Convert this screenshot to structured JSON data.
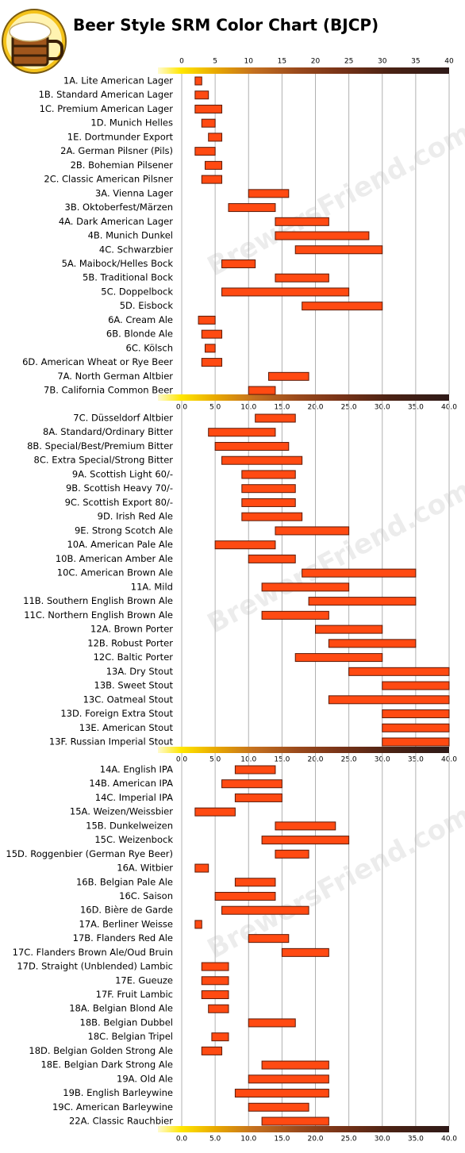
{
  "watermark": "BrewersFriend.com",
  "chart_data": [
    {
      "type": "range-bar",
      "title": "Beer Style SRM Color Chart (BJCP)",
      "color": "#ff4a12",
      "xlim": [
        0,
        40
      ],
      "x2ticks": [
        0,
        5,
        10,
        15,
        20,
        25,
        30,
        35,
        40
      ],
      "xticks": [
        {
          "value": 0,
          "label": "0.0"
        },
        {
          "value": 5,
          "label": "5.0"
        },
        {
          "value": 10,
          "label": "10.0"
        },
        {
          "value": 15,
          "label": "15.0"
        },
        {
          "value": 20,
          "label": "20.0"
        },
        {
          "value": 25,
          "label": "25.0"
        },
        {
          "value": 30,
          "label": "30.0"
        },
        {
          "value": 35,
          "label": "35.0"
        },
        {
          "value": 40,
          "label": "40.0"
        }
      ],
      "categories": [
        "1A. Lite American Lager",
        "1B. Standard American Lager",
        "1C. Premium American Lager",
        "1D. Munich Helles",
        "1E. Dortmunder Export",
        "2A. German Pilsner (Pils)",
        "2B. Bohemian Pilsener",
        "2C. Classic American Pilsner",
        "3A. Vienna Lager",
        "3B. Oktoberfest/Märzen",
        "4A. Dark American Lager",
        "4B. Munich Dunkel",
        "4C. Schwarzbier",
        "5A. Maibock/Helles Bock",
        "5B. Traditional Bock",
        "5C. Doppelbock",
        "5D. Eisbock",
        "6A. Cream Ale",
        "6B. Blonde Ale",
        "6C. Kölsch",
        "6D. American Wheat or Rye Beer",
        "7A. North German Altbier",
        "7B. California Common Beer"
      ],
      "low": [
        2,
        2,
        2,
        3,
        4,
        2,
        3.5,
        3,
        10,
        7,
        14,
        14,
        17,
        6,
        14,
        6,
        18,
        2.5,
        3,
        3.5,
        3,
        13,
        10
      ],
      "high": [
        3,
        4,
        6,
        5,
        6,
        5,
        6,
        6,
        16,
        14,
        22,
        28,
        30,
        11,
        22,
        25,
        30,
        5,
        6,
        5,
        6,
        19,
        14
      ]
    },
    {
      "type": "range-bar",
      "color": "#ff4a12",
      "xlim": [
        0,
        40
      ],
      "xticks": [
        {
          "value": 0,
          "label": "0.0"
        },
        {
          "value": 5,
          "label": "5.0"
        },
        {
          "value": 10,
          "label": "10.0"
        },
        {
          "value": 15,
          "label": "15.0"
        },
        {
          "value": 20,
          "label": "20.0"
        },
        {
          "value": 25,
          "label": "25.0"
        },
        {
          "value": 30,
          "label": "30.0"
        },
        {
          "value": 35,
          "label": "35.0"
        },
        {
          "value": 40,
          "label": "40.0"
        }
      ],
      "categories": [
        "7C. Düsseldorf Altbier",
        "8A. Standard/Ordinary Bitter",
        "8B. Special/Best/Premium Bitter",
        "8C. Extra Special/Strong Bitter",
        "9A. Scottish Light 60/-",
        "9B. Scottish Heavy 70/-",
        "9C. Scottish Export 80/-",
        "9D. Irish Red Ale",
        "9E. Strong Scotch Ale",
        "10A. American Pale Ale",
        "10B. American Amber Ale",
        "10C. American Brown Ale",
        "11A. Mild",
        "11B. Southern English Brown Ale",
        "11C. Northern English Brown Ale",
        "12A. Brown Porter",
        "12B. Robust Porter",
        "12C. Baltic Porter",
        "13A. Dry Stout",
        "13B. Sweet Stout",
        "13C. Oatmeal Stout",
        "13D. Foreign Extra Stout",
        "13E. American Stout",
        "13F. Russian Imperial Stout"
      ],
      "low": [
        11,
        4,
        5,
        6,
        9,
        9,
        9,
        9,
        14,
        5,
        10,
        18,
        12,
        19,
        12,
        20,
        22,
        17,
        25,
        30,
        22,
        30,
        30,
        30
      ],
      "high": [
        17,
        14,
        16,
        18,
        17,
        17,
        17,
        18,
        25,
        14,
        17,
        35,
        25,
        35,
        22,
        30,
        35,
        30,
        40,
        40,
        40,
        40,
        40,
        40
      ]
    },
    {
      "type": "range-bar",
      "color": "#ff4a12",
      "xlim": [
        0,
        40
      ],
      "xticks": [
        {
          "value": 0,
          "label": "0.0"
        },
        {
          "value": 5,
          "label": "5.0"
        },
        {
          "value": 10,
          "label": "10.0"
        },
        {
          "value": 15,
          "label": "15.0"
        },
        {
          "value": 20,
          "label": "20.0"
        },
        {
          "value": 25,
          "label": "25.0"
        },
        {
          "value": 30,
          "label": "30.0"
        },
        {
          "value": 35,
          "label": "35.0"
        },
        {
          "value": 40,
          "label": "40.0"
        }
      ],
      "categories": [
        "14A. English IPA",
        "14B. American IPA",
        "14C. Imperial IPA",
        "15A. Weizen/Weissbier",
        "15B. Dunkelweizen",
        "15C. Weizenbock",
        "15D. Roggenbier (German Rye Beer)",
        "16A. Witbier",
        "16B. Belgian Pale Ale",
        "16C. Saison",
        "16D. Bière de Garde",
        "17A. Berliner Weisse",
        "17B. Flanders Red Ale",
        "17C. Flanders Brown Ale/Oud Bruin",
        "17D. Straight (Unblended) Lambic",
        "17E. Gueuze",
        "17F. Fruit Lambic",
        "18A. Belgian Blond Ale",
        "18B. Belgian Dubbel",
        "18C. Belgian Tripel",
        "18D. Belgian Golden Strong Ale",
        "18E. Belgian Dark Strong Ale",
        "19A. Old Ale",
        "19B. English Barleywine",
        "19C. American Barleywine",
        "22A. Classic Rauchbier"
      ],
      "low": [
        8,
        6,
        8,
        2,
        14,
        12,
        14,
        2,
        8,
        5,
        6,
        2,
        10,
        15,
        3,
        3,
        3,
        4,
        10,
        4.5,
        3,
        12,
        10,
        8,
        10,
        12
      ],
      "high": [
        14,
        15,
        15,
        8,
        23,
        25,
        19,
        4,
        14,
        14,
        19,
        3,
        16,
        22,
        7,
        7,
        7,
        7,
        17,
        7,
        6,
        22,
        22,
        22,
        19,
        22
      ]
    }
  ]
}
